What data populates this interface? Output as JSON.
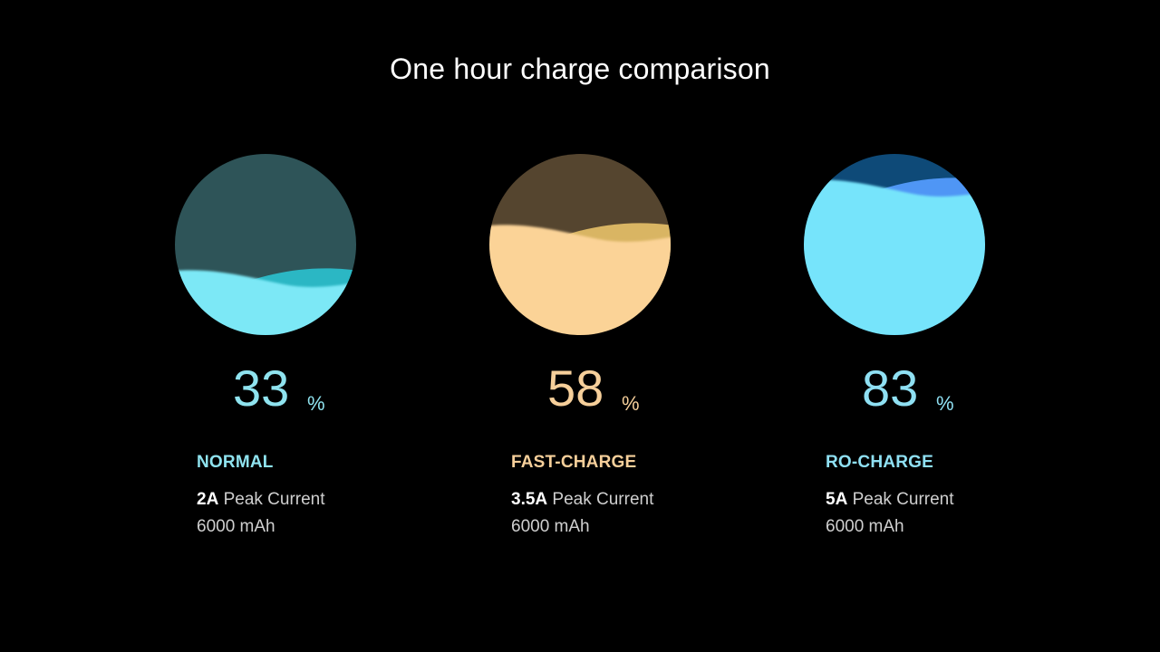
{
  "title": "One hour charge comparison",
  "modes": [
    {
      "percent": 33,
      "percent_text": "33",
      "percent_sign": "%",
      "name": "NORMAL",
      "peak_current": "2A",
      "peak_label": "Peak Current",
      "capacity": "6000 mAh",
      "colors": {
        "accent": "#8fe3ef",
        "empty": "#2e5458",
        "liquid": "#7ce8f6",
        "wave": "#2bb7c4"
      }
    },
    {
      "percent": 58,
      "percent_text": "58",
      "percent_sign": "%",
      "name": "FAST-CHARGE",
      "peak_current": "3.5A",
      "peak_label": "Peak Current",
      "capacity": "6000 mAh",
      "colors": {
        "accent": "#f6cf9a",
        "empty": "#55452f",
        "liquid": "#fbd397",
        "wave": "#d9b563"
      }
    },
    {
      "percent": 83,
      "percent_text": "83",
      "percent_sign": "%",
      "name": "RO-CHARGE",
      "peak_current": "5A",
      "peak_label": "Peak Current",
      "capacity": "6000 mAh",
      "colors": {
        "accent": "#8fe0f3",
        "empty": "#0e4a78",
        "liquid": "#76e4fb",
        "wave": "#4f96f5"
      }
    }
  ]
}
